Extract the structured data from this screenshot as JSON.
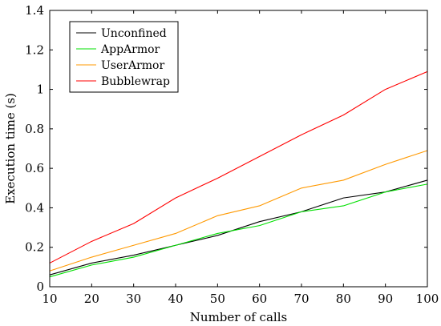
{
  "chart_data": {
    "type": "line",
    "xlabel": "Number of calls",
    "ylabel": "Execution time (s)",
    "xlim": [
      10,
      100
    ],
    "ylim": [
      0,
      1.4
    ],
    "xticks": [
      "10",
      "20",
      "30",
      "40",
      "50",
      "60",
      "70",
      "80",
      "90",
      "100"
    ],
    "yticks": [
      "0",
      "0.2",
      "0.4",
      "0.6",
      "0.8",
      "1",
      "1.2",
      "1.4"
    ],
    "grid": false,
    "legend_position": "top-left",
    "x": [
      10,
      20,
      30,
      40,
      50,
      60,
      70,
      80,
      90,
      100
    ],
    "series": [
      {
        "name": "Unconfined",
        "color": "#000000",
        "values": [
          0.06,
          0.12,
          0.16,
          0.21,
          0.26,
          0.33,
          0.38,
          0.45,
          0.48,
          0.54
        ]
      },
      {
        "name": "AppArmor",
        "color": "#00e000",
        "values": [
          0.05,
          0.11,
          0.15,
          0.21,
          0.27,
          0.31,
          0.38,
          0.41,
          0.48,
          0.52
        ]
      },
      {
        "name": "UserArmor",
        "color": "#ff9900",
        "values": [
          0.08,
          0.15,
          0.21,
          0.27,
          0.36,
          0.41,
          0.5,
          0.54,
          0.62,
          0.69
        ]
      },
      {
        "name": "Bubblewrap",
        "color": "#ff0000",
        "values": [
          0.12,
          0.23,
          0.32,
          0.45,
          0.55,
          0.66,
          0.77,
          0.87,
          1.0,
          1.09
        ]
      }
    ]
  }
}
